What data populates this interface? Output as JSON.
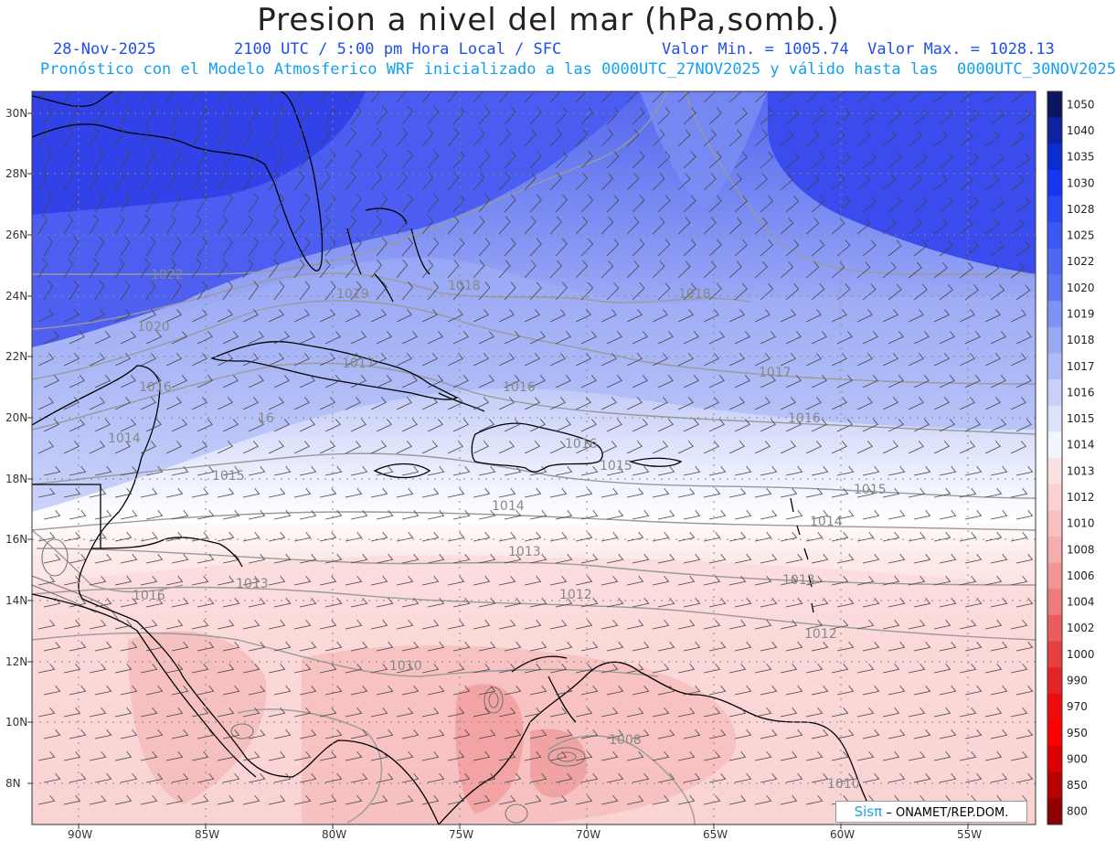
{
  "header": {
    "title": "Presion a nivel del mar (hPa,somb.)",
    "date": "28-Nov-2025",
    "time": "2100 UTC / 5:00 pm Hora Local / SFC",
    "minmax": "Valor Min. = 1005.74  Valor Max. = 1028.13",
    "model_info": "Pronóstico con el Modelo Atmosferico WRF inicializado a las 0000UTC_27NOV2025 y válido hasta las  0000UTC_30NOV2025"
  },
  "map": {
    "lat_labels": [
      "30N",
      "28N",
      "26N",
      "24N",
      "22N",
      "20N",
      "18N",
      "16N",
      "14N",
      "12N",
      "10N",
      "8N"
    ],
    "lon_labels": [
      "90W",
      "85W",
      "80W",
      "75W",
      "70W",
      "65W",
      "60W",
      "55W"
    ],
    "contour_labels": [
      "1022",
      "1020",
      "1019",
      "1018",
      "1017",
      "1016",
      "1016",
      "1015",
      "1015",
      "1014",
      "1014",
      "1013",
      "1013",
      "1013",
      "1012",
      "1012",
      "1010",
      "1008",
      "1010",
      "1018",
      "1016",
      "1017",
      "1016",
      "1015",
      "1014",
      "1016",
      "1015"
    ]
  },
  "colorbar": {
    "levels": [
      "1050",
      "1040",
      "1035",
      "1030",
      "1028",
      "1025",
      "1022",
      "1020",
      "1019",
      "1018",
      "1017",
      "1016",
      "1015",
      "1014",
      "1013",
      "1012",
      "1010",
      "1008",
      "1006",
      "1004",
      "1002",
      "1000",
      "990",
      "970",
      "950",
      "900",
      "850",
      "800"
    ],
    "colors": [
      "#0c1660",
      "#0e22a0",
      "#0a2dd0",
      "#1636f2",
      "#2a48f4",
      "#3b58f2",
      "#4d68f2",
      "#5f78f2",
      "#7f93f4",
      "#98a8f4",
      "#afbbf6",
      "#c7d0f8",
      "#dde3fb",
      "#f2f4fe",
      "#fbe2e2",
      "#fbd0d0",
      "#f8c0c0",
      "#f6adad",
      "#f29595",
      "#ee7b7b",
      "#ea5d5d",
      "#e63f3f",
      "#e42424",
      "#ee0c0c",
      "#fc0000",
      "#dc0000",
      "#b80000",
      "#8c0000"
    ]
  },
  "credit": {
    "brand": "Sisπ",
    "text": "– ONAMET/REP.DOM."
  }
}
